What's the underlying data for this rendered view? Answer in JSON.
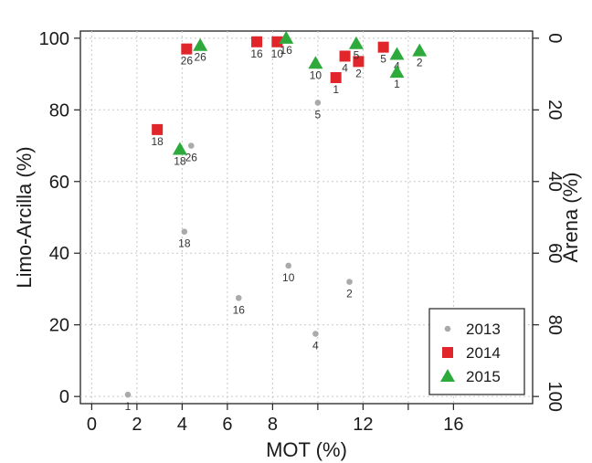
{
  "chart_data": {
    "type": "scatter",
    "xlabel": "MOT (%)",
    "ylabel": "Limo-Arcilla (%)",
    "y2label": "Arena (%)",
    "xlim": [
      -0.5,
      19.5
    ],
    "ylim": [
      -2,
      102
    ],
    "x_ticks": [
      0,
      2,
      4,
      6,
      8,
      10,
      12,
      14,
      16
    ],
    "x_tick_labels": [
      "0",
      "2",
      "4",
      "6",
      "8",
      "",
      "12",
      "",
      "16"
    ],
    "y_ticks": [
      0,
      20,
      40,
      60,
      80,
      100
    ],
    "y_tick_labels": [
      "0",
      "20",
      "40",
      "60",
      "80",
      "100"
    ],
    "y2_ticks": [
      0,
      20,
      40,
      60,
      80,
      100
    ],
    "y2_tick_labels": [
      "100",
      "80",
      "60",
      "40",
      "20",
      "0"
    ],
    "grid": true,
    "legend_position": "bottom-right",
    "series": [
      {
        "name": "2013",
        "marker": "circle",
        "color": "#aaaaaa",
        "points": [
          {
            "x": 1.6,
            "y": 0.5,
            "label": "1"
          },
          {
            "x": 4.1,
            "y": 46,
            "label": "18"
          },
          {
            "x": 4.4,
            "y": 70,
            "label": "26"
          },
          {
            "x": 6.5,
            "y": 27.5,
            "label": "16"
          },
          {
            "x": 8.7,
            "y": 36.5,
            "label": "10"
          },
          {
            "x": 10.0,
            "y": 82,
            "label": "5"
          },
          {
            "x": 9.9,
            "y": 17.5,
            "label": "4"
          },
          {
            "x": 11.4,
            "y": 32,
            "label": "2"
          }
        ]
      },
      {
        "name": "2014",
        "marker": "square",
        "color": "#e0262a",
        "points": [
          {
            "x": 2.9,
            "y": 74.5,
            "label": "18"
          },
          {
            "x": 4.2,
            "y": 97,
            "label": "26"
          },
          {
            "x": 7.3,
            "y": 99,
            "label": "16"
          },
          {
            "x": 8.2,
            "y": 99,
            "label": "10"
          },
          {
            "x": 10.8,
            "y": 89,
            "label": "1"
          },
          {
            "x": 11.2,
            "y": 95,
            "label": "4"
          },
          {
            "x": 11.8,
            "y": 93.5,
            "label": "2"
          },
          {
            "x": 12.9,
            "y": 97.5,
            "label": "5"
          }
        ]
      },
      {
        "name": "2015",
        "marker": "triangle",
        "color": "#2eaa3c",
        "points": [
          {
            "x": 3.9,
            "y": 69,
            "label": "18"
          },
          {
            "x": 4.8,
            "y": 98,
            "label": "26"
          },
          {
            "x": 8.6,
            "y": 100,
            "label": "16"
          },
          {
            "x": 9.9,
            "y": 93,
            "label": "10"
          },
          {
            "x": 11.7,
            "y": 98.5,
            "label": "5"
          },
          {
            "x": 13.5,
            "y": 95.5,
            "label": "4"
          },
          {
            "x": 13.5,
            "y": 90.5,
            "label": "1"
          },
          {
            "x": 14.5,
            "y": 96.5,
            "label": "2"
          }
        ]
      }
    ]
  }
}
